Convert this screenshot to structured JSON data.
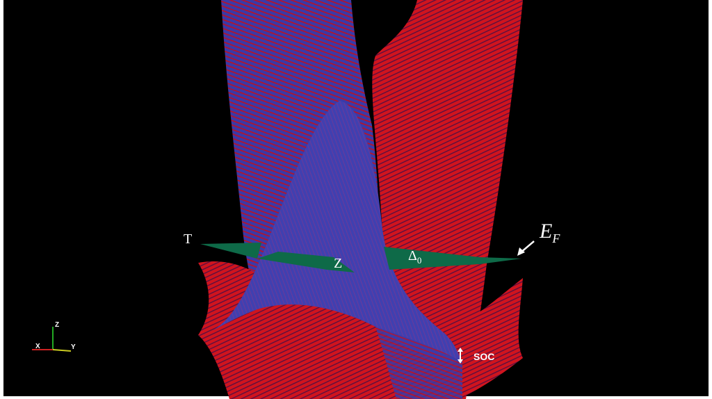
{
  "labels": {
    "T": "T",
    "Z": "Z",
    "delta": {
      "symbol": "Δ",
      "subscript": "0"
    },
    "fermi": {
      "symbol": "E",
      "subscript": "F"
    },
    "soc": "SOC"
  },
  "axes_triad": {
    "x": "X",
    "y": "Y",
    "z": "Z"
  }
}
